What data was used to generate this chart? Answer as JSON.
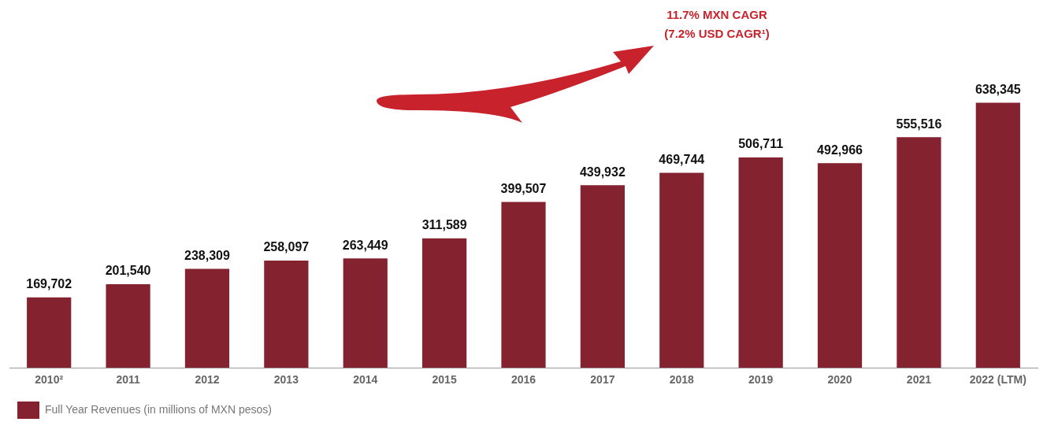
{
  "chart_data": {
    "type": "bar",
    "categories": [
      "2010²",
      "2011",
      "2012",
      "2013",
      "2014",
      "2015",
      "2016",
      "2017",
      "2018",
      "2019",
      "2020",
      "2021",
      "2022 (LTM)"
    ],
    "series": [
      {
        "name": "Full Year Revenues (in millions of MXN pesos)",
        "color": "#84222f",
        "values": [
          169702,
          201540,
          238309,
          258097,
          263449,
          311589,
          399507,
          439932,
          469744,
          506711,
          492966,
          555516,
          638345
        ],
        "value_labels": [
          "169,702",
          "201,540",
          "238,309",
          "258,097",
          "263,449",
          "311,589",
          "399,507",
          "439,932",
          "469,744",
          "506,711",
          "492,966",
          "555,516",
          "638,345"
        ]
      }
    ],
    "legend": "bottom left",
    "grid": false,
    "annotations": [
      "11.7% MXN CAGR",
      "(7.2% USD CAGR¹)"
    ]
  }
}
